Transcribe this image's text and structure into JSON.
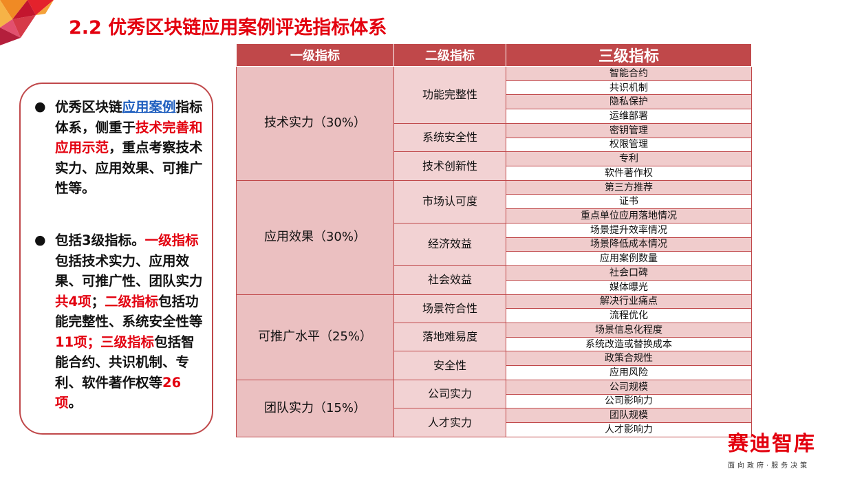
{
  "title": "2.2 优秀区块链应用案例评选指标体系",
  "summary": {
    "p1": [
      {
        "text": "优秀区块链",
        "style": "normal"
      },
      {
        "text": "应用案例",
        "style": "blue"
      },
      {
        "text": "指标体系，侧重于",
        "style": "normal"
      },
      {
        "text": "技术完善和应用示范",
        "style": "red"
      },
      {
        "text": "，重点考察技术实力、应用效果、可推广性等。",
        "style": "normal"
      }
    ],
    "p2": [
      {
        "text": "包括3级指标。",
        "style": "normal"
      },
      {
        "text": "一级指标",
        "style": "red"
      },
      {
        "text": "包括技术实力、应用效果、可推广性、团队实力",
        "style": "normal"
      },
      {
        "text": "共4项",
        "style": "red"
      },
      {
        "text": "；",
        "style": "normal"
      },
      {
        "text": "二级指标",
        "style": "red"
      },
      {
        "text": "包括功能完整性、系统安全性等",
        "style": "normal"
      },
      {
        "text": "11项；三级指标",
        "style": "red"
      },
      {
        "text": "包括智能合约、共识机制、专利、软件著作权等",
        "style": "normal"
      },
      {
        "text": "26项",
        "style": "red"
      },
      {
        "text": "。",
        "style": "normal"
      }
    ]
  },
  "table": {
    "headers": [
      "一级指标",
      "二级指标",
      "三级指标"
    ],
    "groups": [
      {
        "level1": "技术实力（30%）",
        "subs": [
          {
            "level2": "功能完整性",
            "items": [
              "智能合约",
              "共识机制",
              "隐私保护",
              "运维部署"
            ]
          },
          {
            "level2": "系统安全性",
            "items": [
              "密钥管理",
              "权限管理"
            ]
          },
          {
            "level2": "技术创新性",
            "items": [
              "专利",
              "软件著作权"
            ]
          }
        ]
      },
      {
        "level1": "应用效果（30%）",
        "subs": [
          {
            "level2": "市场认可度",
            "items": [
              "第三方推荐",
              "证书",
              "重点单位应用落地情况"
            ]
          },
          {
            "level2": "经济效益",
            "items": [
              "场景提升效率情况",
              "场景降低成本情况",
              "应用案例数量"
            ]
          },
          {
            "level2": "社会效益",
            "items": [
              "社会口碑",
              "媒体曝光"
            ]
          }
        ]
      },
      {
        "level1": "可推广水平（25%）",
        "subs": [
          {
            "level2": "场景符合性",
            "items": [
              "解决行业痛点",
              "流程优化"
            ]
          },
          {
            "level2": "落地难易度",
            "items": [
              "场景信息化程度",
              "系统改造或替换成本"
            ]
          },
          {
            "level2": "安全性",
            "items": [
              "政策合规性",
              "应用风险"
            ]
          }
        ]
      },
      {
        "level1": "团队实力（15%）",
        "subs": [
          {
            "level2": "公司实力",
            "items": [
              "公司规模",
              "公司影响力"
            ]
          },
          {
            "level2": "人才实力",
            "items": [
              "团队规模",
              "人才影响力"
            ]
          }
        ]
      }
    ]
  },
  "brand": {
    "name": "赛迪智库",
    "slogan": "面向政府·服务决策"
  },
  "colors": {
    "accent": "#e3000f",
    "table_header": "#c0484a",
    "link_blue": "#1f5fbf"
  }
}
